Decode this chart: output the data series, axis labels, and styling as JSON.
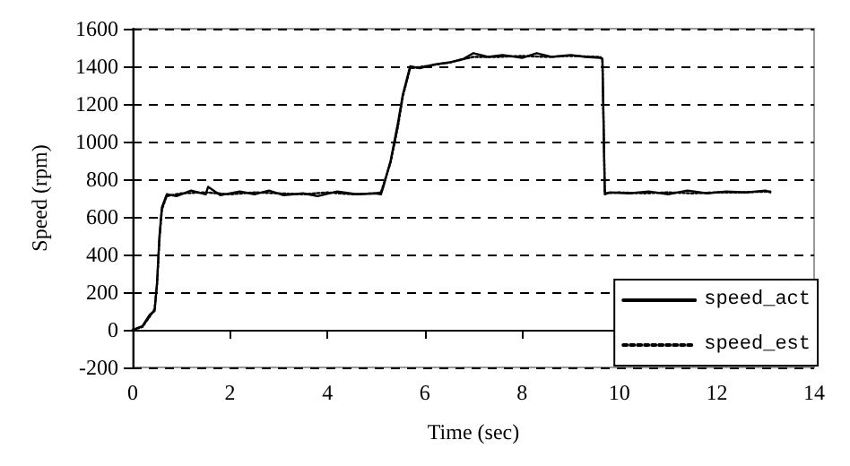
{
  "chart_data": {
    "type": "line",
    "xlabel": "Time (sec)",
    "ylabel": "Speed (rpm)",
    "xlim": [
      0,
      14
    ],
    "xticks": [
      0,
      2,
      4,
      6,
      8,
      10,
      12,
      14
    ],
    "ylim": [
      -200,
      1600
    ],
    "yticks": [
      -200,
      0,
      200,
      400,
      600,
      800,
      1000,
      1200,
      1400,
      1600
    ],
    "grid": "y",
    "legend": "bottom right",
    "marker": "none",
    "series": [
      {
        "name": "speed_act",
        "color": "#000000",
        "line_style": "solid",
        "x": [
          0,
          0.2,
          0.35,
          0.45,
          0.5,
          0.55,
          0.6,
          0.7,
          0.9,
          1.2,
          1.5,
          1.55,
          1.8,
          2.2,
          2.5,
          2.8,
          3.1,
          3.5,
          3.8,
          4.2,
          4.6,
          5.0,
          5.1,
          5.15,
          5.3,
          5.45,
          5.55,
          5.7,
          5.9,
          6.2,
          6.5,
          6.8,
          7.0,
          7.3,
          7.6,
          8.0,
          8.3,
          8.6,
          9.0,
          9.3,
          9.6,
          9.65,
          9.7,
          9.8,
          10.2,
          10.6,
          11.0,
          11.4,
          11.8,
          12.2,
          12.6,
          13.0,
          13.1
        ],
        "values": [
          0,
          20,
          80,
          100,
          250,
          500,
          650,
          720,
          710,
          740,
          720,
          760,
          715,
          735,
          720,
          740,
          715,
          725,
          710,
          735,
          720,
          725,
          720,
          760,
          900,
          1100,
          1250,
          1400,
          1390,
          1410,
          1420,
          1440,
          1470,
          1450,
          1460,
          1445,
          1470,
          1450,
          1460,
          1450,
          1445,
          1440,
          720,
          730,
          725,
          735,
          720,
          740,
          725,
          735,
          730,
          740,
          730
        ]
      },
      {
        "name": "speed_est",
        "color": "#000000",
        "line_style": "dotted",
        "x": [
          0,
          0.2,
          0.35,
          0.45,
          0.5,
          0.55,
          0.6,
          0.7,
          1.0,
          1.5,
          2.0,
          2.5,
          3.0,
          3.5,
          4.0,
          4.5,
          5.0,
          5.1,
          5.3,
          5.45,
          5.55,
          5.7,
          6.0,
          6.5,
          7.0,
          7.5,
          8.0,
          8.5,
          9.0,
          9.6,
          9.65,
          9.7,
          10.0,
          10.5,
          11.0,
          11.5,
          12.0,
          12.5,
          13.1
        ],
        "values": [
          0,
          15,
          70,
          110,
          240,
          480,
          640,
          710,
          725,
          730,
          720,
          730,
          725,
          720,
          730,
          720,
          725,
          730,
          890,
          1080,
          1240,
          1390,
          1400,
          1420,
          1450,
          1450,
          1455,
          1450,
          1455,
          1450,
          1440,
          725,
          730,
          725,
          730,
          725,
          730,
          730,
          735
        ]
      }
    ]
  }
}
